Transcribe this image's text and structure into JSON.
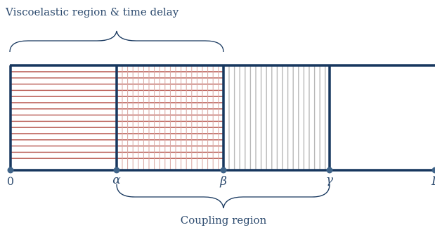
{
  "top_brace_label": "Viscoelastic region & time delay",
  "bottom_brace_label": "Coupling region",
  "points": [
    {
      "id": "zero",
      "label": "0"
    },
    {
      "id": "alpha",
      "label": "α"
    },
    {
      "id": "beta",
      "label": "β"
    },
    {
      "id": "gamma",
      "label": "γ"
    },
    {
      "id": "end",
      "label": "L"
    }
  ],
  "colors": {
    "frame": "#17375e",
    "horizontal_hatch": "#b5524a",
    "vertical_hatch": "#b8b8b8",
    "grid_vertical": "#d8a7a2",
    "node": "#3f6489",
    "text": "#2c4a6e"
  }
}
